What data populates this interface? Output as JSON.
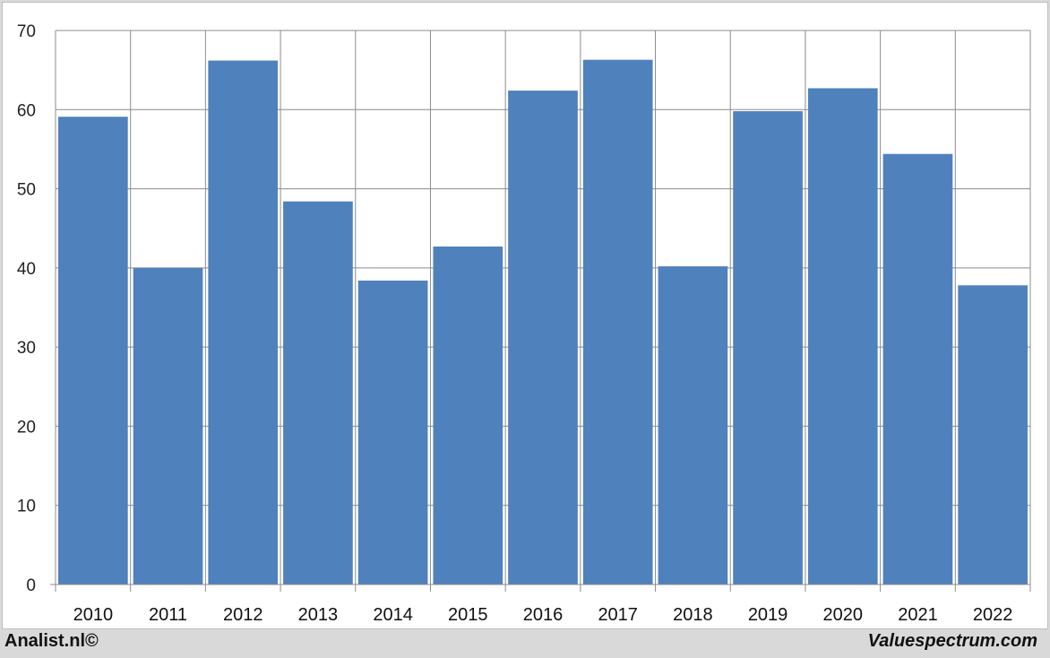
{
  "chart_data": {
    "type": "bar",
    "categories": [
      "2010",
      "2011",
      "2012",
      "2013",
      "2014",
      "2015",
      "2016",
      "2017",
      "2018",
      "2019",
      "2020",
      "2021",
      "2022"
    ],
    "values": [
      59.1,
      40.0,
      66.2,
      48.4,
      38.4,
      42.7,
      62.4,
      66.3,
      40.2,
      59.8,
      62.7,
      54.4,
      37.8
    ],
    "ylim": [
      0,
      70
    ],
    "yticks": [
      0,
      10,
      20,
      30,
      40,
      50,
      60,
      70
    ],
    "grid": true,
    "bar_color": "#4f81bd",
    "title": "",
    "xlabel": "",
    "ylabel": ""
  },
  "footer": {
    "left": "Analist.nl©",
    "right": "Valuespectrum.com"
  }
}
